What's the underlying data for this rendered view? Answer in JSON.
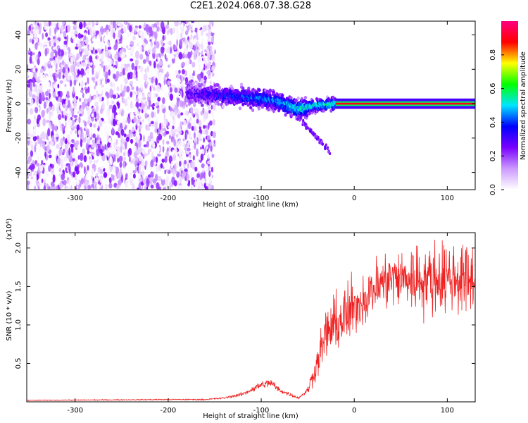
{
  "title": "C2E1.2024.068.07.38.G28",
  "chart_data": [
    {
      "type": "heatmap",
      "xlabel": "Height of straight line (km)",
      "ylabel": "Frequency (Hz)",
      "xlim": [
        -352,
        130
      ],
      "ylim": [
        -50,
        48
      ],
      "xticks": [
        -300,
        -200,
        -100,
        0,
        100
      ],
      "yticks": [
        -40,
        -20,
        0,
        20,
        40
      ],
      "colorbar": {
        "label": "Normalized spectral amplitude",
        "range": [
          0.0,
          1.0
        ],
        "ticks": [
          "0.0",
          "0.2",
          "0.4",
          "0.6",
          "0.8"
        ],
        "colormap": [
          "#ffffff",
          "#cc99ff",
          "#7a00ff",
          "#0000ff",
          "#00e5ff",
          "#00ff00",
          "#ffff00",
          "#ff0000",
          "#ff0080"
        ]
      },
      "features": {
        "noise_region": [
          -352,
          -150
        ],
        "signal_trace": [
          [
            -180,
            6
          ],
          [
            -150,
            5
          ],
          [
            -120,
            4
          ],
          [
            -100,
            3
          ],
          [
            -80,
            1
          ],
          [
            -60,
            -3
          ],
          [
            -40,
            -1
          ],
          [
            -20,
            0
          ],
          [
            0,
            1
          ],
          [
            130,
            0
          ]
        ],
        "strong_carrier": [
          -20,
          130
        ]
      }
    },
    {
      "type": "line",
      "xlabel": "Height of straight line (km)",
      "ylabel": "SNR (10 * v/v)",
      "yexponent": "(x10⁴)",
      "xlim": [
        -352,
        130
      ],
      "ylim": [
        0.0,
        2.2
      ],
      "xticks": [
        -300,
        -200,
        -100,
        0,
        100
      ],
      "yticks": [
        "0.5",
        "1.0",
        "1.5",
        "2.0"
      ],
      "series": [
        {
          "color": "#ee2222",
          "x": [
            -352,
            -200,
            -160,
            -140,
            -120,
            -100,
            -90,
            -80,
            -60,
            -50,
            -40,
            -30,
            -20,
            -10,
            0,
            10,
            20,
            30,
            40,
            60,
            80,
            100,
            120,
            130
          ],
          "values": [
            0.02,
            0.03,
            0.03,
            0.05,
            0.1,
            0.22,
            0.25,
            0.15,
            0.05,
            0.15,
            0.5,
            0.9,
            1.0,
            1.1,
            1.2,
            1.35,
            1.45,
            1.55,
            1.6,
            1.6,
            1.6,
            1.62,
            1.6,
            1.6
          ]
        }
      ]
    }
  ]
}
